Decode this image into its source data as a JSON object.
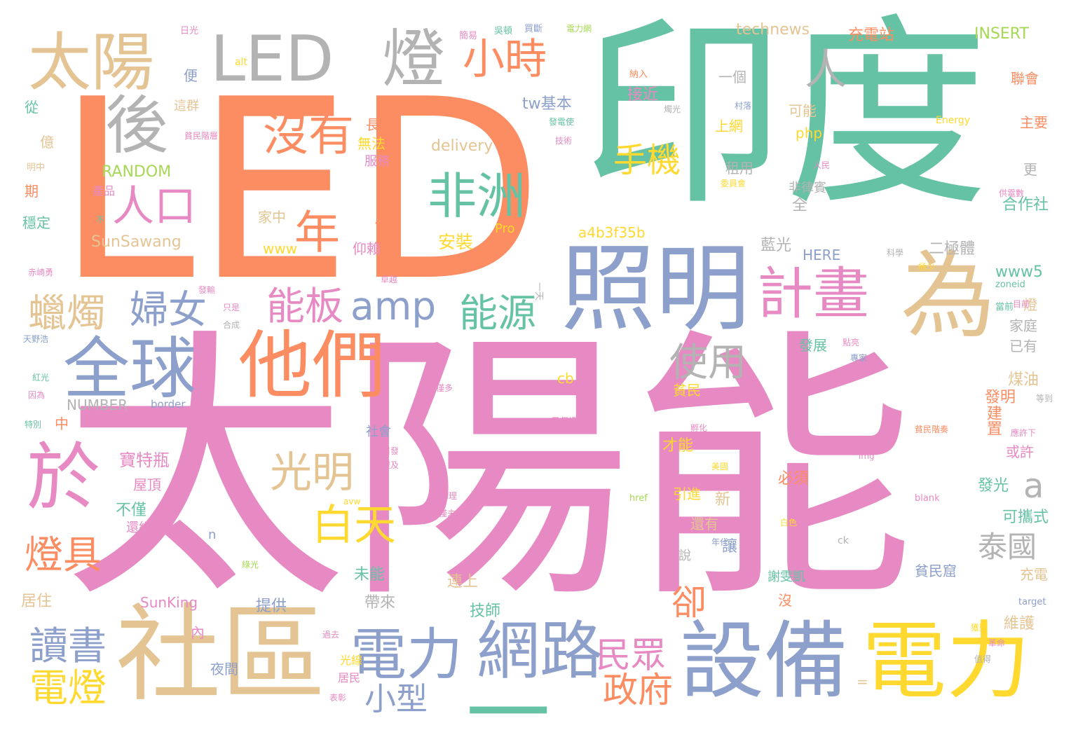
{
  "palette": {
    "pink": "#e78ac3",
    "orange": "#fc8d62",
    "teal": "#66c2a5",
    "blue": "#8da0cb",
    "tan": "#e5c494",
    "yellow": "#ffd92f",
    "green": "#a6d854",
    "gray": "#b3b3b3"
  },
  "words": [
    {
      "text": "太陽能",
      "color": "pink"
    },
    {
      "text": "LED",
      "color": "orange"
    },
    {
      "text": "印度",
      "color": "teal"
    },
    {
      "text": "社區",
      "color": "tan"
    },
    {
      "text": "照明",
      "color": "blue"
    },
    {
      "text": "為",
      "color": "tan"
    },
    {
      "text": "設備",
      "color": "blue"
    },
    {
      "text": "電力",
      "color": "yellow"
    },
    {
      "text": "他們",
      "color": "orange"
    },
    {
      "text": "全球",
      "color": "blue"
    },
    {
      "text": "於",
      "color": "pink"
    },
    {
      "text": "後",
      "color": "gray"
    },
    {
      "text": "LED",
      "color": "gray"
    },
    {
      "text": "燈",
      "color": "gray"
    },
    {
      "text": "太陽",
      "color": "tan"
    },
    {
      "text": "網路",
      "color": "blue"
    },
    {
      "text": "電力",
      "color": "blue"
    },
    {
      "text": "一",
      "color": "teal"
    },
    {
      "text": "非洲",
      "color": "teal"
    },
    {
      "text": "沒有",
      "color": "orange"
    },
    {
      "text": "計畫",
      "color": "pink"
    },
    {
      "text": "小時",
      "color": "orange"
    },
    {
      "text": "人口",
      "color": "pink"
    },
    {
      "text": "年",
      "color": "orange"
    },
    {
      "text": "amp",
      "color": "blue"
    },
    {
      "text": "能源",
      "color": "teal"
    },
    {
      "text": "婦女",
      "color": "blue"
    },
    {
      "text": "能板",
      "color": "pink"
    },
    {
      "text": "蠟燭",
      "color": "tan"
    },
    {
      "text": "光明",
      "color": "tan"
    },
    {
      "text": "白天",
      "color": "yellow"
    },
    {
      "text": "使用",
      "color": "gray"
    },
    {
      "text": "手機",
      "color": "yellow"
    },
    {
      "text": "人",
      "color": "gray"
    },
    {
      "text": "燈具",
      "color": "orange"
    },
    {
      "text": "泰國",
      "color": "gray"
    },
    {
      "text": "卻",
      "color": "orange"
    },
    {
      "text": "讀書",
      "color": "blue"
    },
    {
      "text": "電燈",
      "color": "yellow"
    },
    {
      "text": "民眾",
      "color": "pink"
    },
    {
      "text": "政府",
      "color": "orange"
    },
    {
      "text": "小型",
      "color": "blue"
    },
    {
      "text": "a",
      "color": "gray"
    },
    {
      "text": "technews",
      "color": "tan"
    },
    {
      "text": "充電站",
      "color": "orange"
    },
    {
      "text": "INSERT",
      "color": "green"
    },
    {
      "text": "SunSawang",
      "color": "tan"
    },
    {
      "text": "a4b3f35b",
      "color": "yellow"
    },
    {
      "text": "RANDOM",
      "color": "green"
    },
    {
      "text": "delivery",
      "color": "tan"
    },
    {
      "text": "NUMBER",
      "color": "gray"
    },
    {
      "text": "border",
      "color": "blue"
    },
    {
      "text": "tw基本",
      "color": "blue"
    },
    {
      "text": "接近",
      "color": "pink"
    },
    {
      "text": "安裝",
      "color": "yellow"
    },
    {
      "text": "一個",
      "color": "gray"
    },
    {
      "text": "上網",
      "color": "yellow"
    },
    {
      "text": "php",
      "color": "yellow"
    },
    {
      "text": "租用",
      "color": "gray"
    },
    {
      "text": "可能",
      "color": "tan"
    },
    {
      "text": "無法",
      "color": "yellow"
    },
    {
      "text": "服務",
      "color": "pink"
    },
    {
      "text": "寶特瓶",
      "color": "pink"
    },
    {
      "text": "屋頂",
      "color": "pink"
    },
    {
      "text": "不僅",
      "color": "teal"
    },
    {
      "text": "還組",
      "color": "pink"
    },
    {
      "text": "居住",
      "color": "tan"
    },
    {
      "text": "SunKing",
      "color": "pink"
    },
    {
      "text": "提供",
      "color": "blue"
    },
    {
      "text": "夜間",
      "color": "blue"
    },
    {
      "text": "光線",
      "color": "yellow"
    },
    {
      "text": "居民",
      "color": "pink"
    },
    {
      "text": "內",
      "color": "pink"
    },
    {
      "text": "帶來",
      "color": "gray"
    },
    {
      "text": "未能",
      "color": "teal"
    },
    {
      "text": "連上",
      "color": "tan"
    },
    {
      "text": "技師",
      "color": "teal"
    },
    {
      "text": "謝雯凱",
      "color": "teal"
    },
    {
      "text": "貧民窟",
      "color": "blue"
    },
    {
      "text": "維護",
      "color": "tan"
    },
    {
      "text": "充電",
      "color": "tan"
    },
    {
      "text": "可攜式",
      "color": "teal"
    },
    {
      "text": "發光",
      "color": "teal"
    },
    {
      "text": "或許",
      "color": "pink"
    },
    {
      "text": "發明",
      "color": "orange"
    },
    {
      "text": "建置",
      "color": "orange"
    },
    {
      "text": "煤油",
      "color": "tan"
    },
    {
      "text": "家庭",
      "color": "gray"
    },
    {
      "text": "已有",
      "color": "gray"
    },
    {
      "text": "燈",
      "color": "tan"
    },
    {
      "text": "www5",
      "color": "teal"
    },
    {
      "text": "二極體",
      "color": "gray"
    },
    {
      "text": "藍光",
      "color": "gray"
    },
    {
      "text": "HERE",
      "color": "blue"
    },
    {
      "text": "合作社",
      "color": "teal"
    },
    {
      "text": "主要",
      "color": "orange"
    },
    {
      "text": "聯會",
      "color": "orange"
    },
    {
      "text": "更",
      "color": "gray"
    },
    {
      "text": "必須",
      "color": "orange"
    },
    {
      "text": "引進",
      "color": "yellow"
    },
    {
      "text": "新",
      "color": "tan"
    },
    {
      "text": "還有",
      "color": "tan"
    },
    {
      "text": "讓",
      "color": "blue"
    },
    {
      "text": "說",
      "color": "gray"
    },
    {
      "text": "發展",
      "color": "teal"
    },
    {
      "text": "貧民",
      "color": "yellow"
    },
    {
      "text": "才能",
      "color": "yellow"
    },
    {
      "text": "全",
      "color": "gray"
    },
    {
      "text": "非律賓",
      "color": "gray"
    },
    {
      "text": "cb",
      "color": "yellow"
    },
    {
      "text": "www",
      "color": "yellow"
    },
    {
      "text": "家中",
      "color": "tan"
    },
    {
      "text": "仍",
      "color": "orange"
    },
    {
      "text": "仰賴",
      "color": "pink"
    },
    {
      "text": "長",
      "color": "orange"
    },
    {
      "text": "便",
      "color": "blue"
    },
    {
      "text": "這群",
      "color": "tan"
    },
    {
      "text": "從",
      "color": "teal"
    },
    {
      "text": "億",
      "color": "tan"
    },
    {
      "text": "期",
      "color": "orange"
    },
    {
      "text": "穩定",
      "color": "teal"
    },
    {
      "text": "產品",
      "color": "pink"
    },
    {
      "text": "中",
      "color": "orange"
    },
    {
      "text": "社會",
      "color": "blue"
    },
    {
      "text": "沒",
      "color": "orange"
    },
    {
      "text": "n",
      "color": "blue"
    },
    {
      "text": "Pro",
      "color": "yellow"
    },
    {
      "text": "Energy",
      "color": "yellow"
    },
    {
      "text": "alt",
      "color": "yellow"
    },
    {
      "text": "日光",
      "color": "pink"
    },
    {
      "text": "簡易",
      "color": "pink"
    },
    {
      "text": "吳頓",
      "color": "teal"
    },
    {
      "text": "買斷",
      "color": "blue"
    },
    {
      "text": "電力網",
      "color": "green"
    },
    {
      "text": "納入",
      "color": "orange"
    },
    {
      "text": "燭光",
      "color": "gray"
    },
    {
      "text": "村落",
      "color": "blue"
    },
    {
      "text": "發電使",
      "color": "teal"
    },
    {
      "text": "技術",
      "color": "pink"
    },
    {
      "text": "人民",
      "color": "pink"
    },
    {
      "text": "委員會",
      "color": "yellow"
    },
    {
      "text": "供電數",
      "color": "pink"
    },
    {
      "text": "科學",
      "color": "gray"
    },
    {
      "text": "極少",
      "color": "yellow"
    },
    {
      "text": "zoneid",
      "color": "teal"
    },
    {
      "text": "目前",
      "color": "pink"
    },
    {
      "text": "當前",
      "color": "teal"
    },
    {
      "text": "點亮",
      "color": "pink"
    },
    {
      "text": "專家",
      "color": "blue"
    },
    {
      "text": "等到",
      "color": "gray"
    },
    {
      "text": "應許下",
      "color": "pink"
    },
    {
      "text": "貧民階奏",
      "color": "orange"
    },
    {
      "text": "blank",
      "color": "pink"
    },
    {
      "text": "img",
      "color": "pink"
    },
    {
      "text": "ck",
      "color": "gray"
    },
    {
      "text": "target",
      "color": "blue"
    },
    {
      "text": "白色",
      "color": "yellow"
    },
    {
      "text": "href",
      "color": "green"
    },
    {
      "text": "年代",
      "color": "blue"
    },
    {
      "text": "avw",
      "color": "yellow"
    },
    {
      "text": "物理",
      "color": "pink"
    },
    {
      "text": "僅未",
      "color": "pink"
    },
    {
      "text": "美國",
      "color": "yellow"
    },
    {
      "text": "孵化",
      "color": "pink"
    },
    {
      "text": "已保證",
      "color": "pink"
    },
    {
      "text": "引發",
      "color": "pink"
    },
    {
      "text": "提及",
      "color": "pink"
    },
    {
      "text": "綠光",
      "color": "green"
    },
    {
      "text": "僅多",
      "color": "pink"
    },
    {
      "text": "紅光",
      "color": "teal"
    },
    {
      "text": "因為",
      "color": "pink"
    },
    {
      "text": "特別",
      "color": "teal"
    },
    {
      "text": "赤崎勇",
      "color": "pink"
    },
    {
      "text": "天野浩",
      "color": "blue"
    },
    {
      "text": "合成",
      "color": "gray"
    },
    {
      "text": "只是",
      "color": "pink"
    },
    {
      "text": "發輸",
      "color": "pink"
    },
    {
      "text": "一天",
      "color": "gray"
    },
    {
      "text": "卓越",
      "color": "pink"
    },
    {
      "text": "革命",
      "color": "pink"
    },
    {
      "text": "值得",
      "color": "gray"
    },
    {
      "text": "獲獎",
      "color": "yellow"
    },
    {
      "text": "過去",
      "color": "pink"
    },
    {
      "text": "表彰",
      "color": "pink"
    },
    {
      "text": "明中",
      "color": "tan"
    },
    {
      "text": "貧民階層",
      "color": "pink"
    },
    {
      "text": "不",
      "color": "teal"
    },
    {
      "text": "=",
      "color": "tan"
    }
  ]
}
